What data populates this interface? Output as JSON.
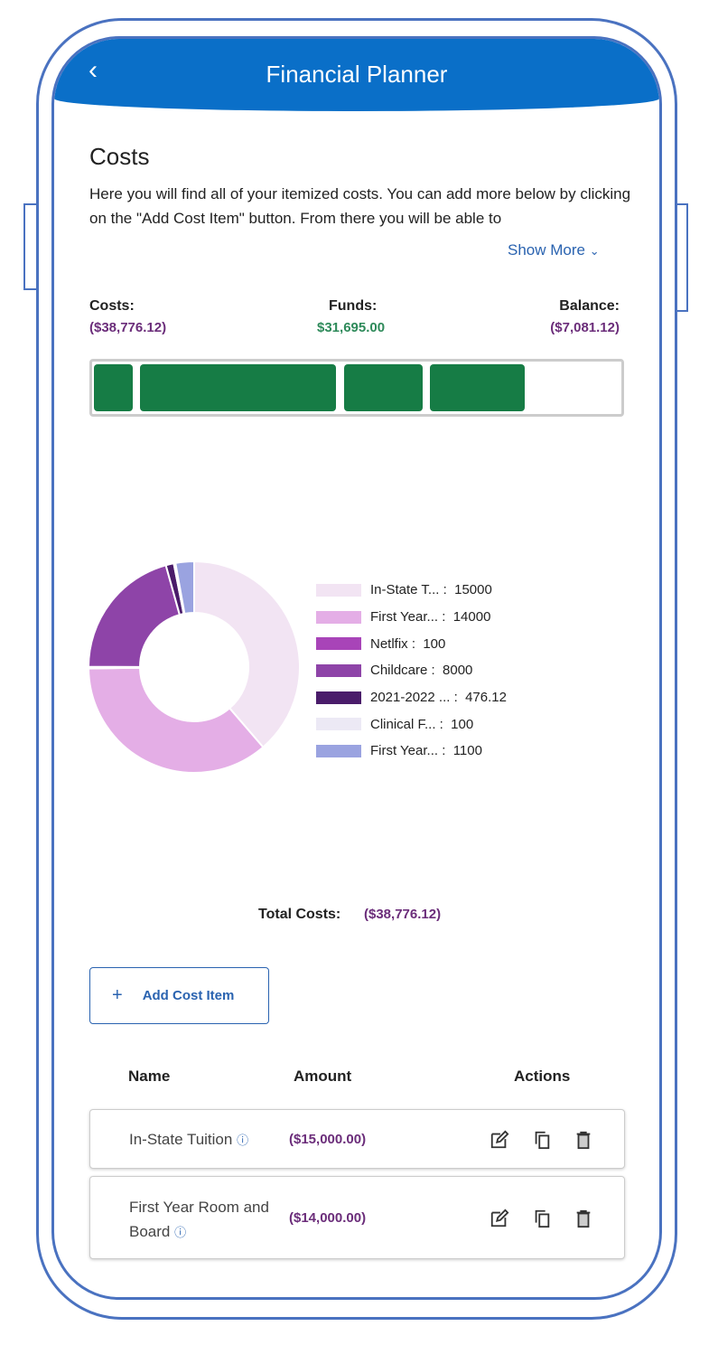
{
  "header": {
    "title": "Financial Planner",
    "back_icon": "chevron-left-icon"
  },
  "section": {
    "title": "Costs",
    "description": "Here you will find all of your itemized costs. You can add more below by clicking on the \"Add Cost Item\" button. From there you will be able to",
    "show_more": "Show More"
  },
  "summary": {
    "costs_label": "Costs:",
    "costs_value": "($38,776.12)",
    "funds_label": "Funds:",
    "funds_value": "$31,695.00",
    "balance_label": "Balance:",
    "balance_value": "($7,081.12)",
    "funded_fraction": 0.817,
    "colors": {
      "costs": "#6b2d7a",
      "funds": "#2e8a5a",
      "bar": "#167c45"
    }
  },
  "chart_data": {
    "type": "pie",
    "donut": true,
    "categories": [
      "In-State T...",
      "First Year...",
      "Netlfix",
      "Childcare",
      "2021-2022 ...",
      "Clinical F...",
      "First Year..."
    ],
    "values": [
      15000,
      14000,
      100,
      8000,
      476.12,
      100,
      1100
    ],
    "colors": [
      "#f2e4f3",
      "#e4aee6",
      "#a844b8",
      "#8e44a8",
      "#4a1c6a",
      "#ece9f5",
      "#9aa3e0"
    ],
    "legend": "right"
  },
  "totals": {
    "label": "Total Costs:",
    "value": "($38,776.12)"
  },
  "add_button": {
    "label": "Add Cost Item",
    "icon": "plus-icon"
  },
  "table": {
    "headers": [
      "Name",
      "Amount",
      "Actions"
    ],
    "rows": [
      {
        "name": "In-State Tuition",
        "amount": "($15,000.00)"
      },
      {
        "name": "First Year Room and Board",
        "amount": "($14,000.00)"
      }
    ]
  }
}
